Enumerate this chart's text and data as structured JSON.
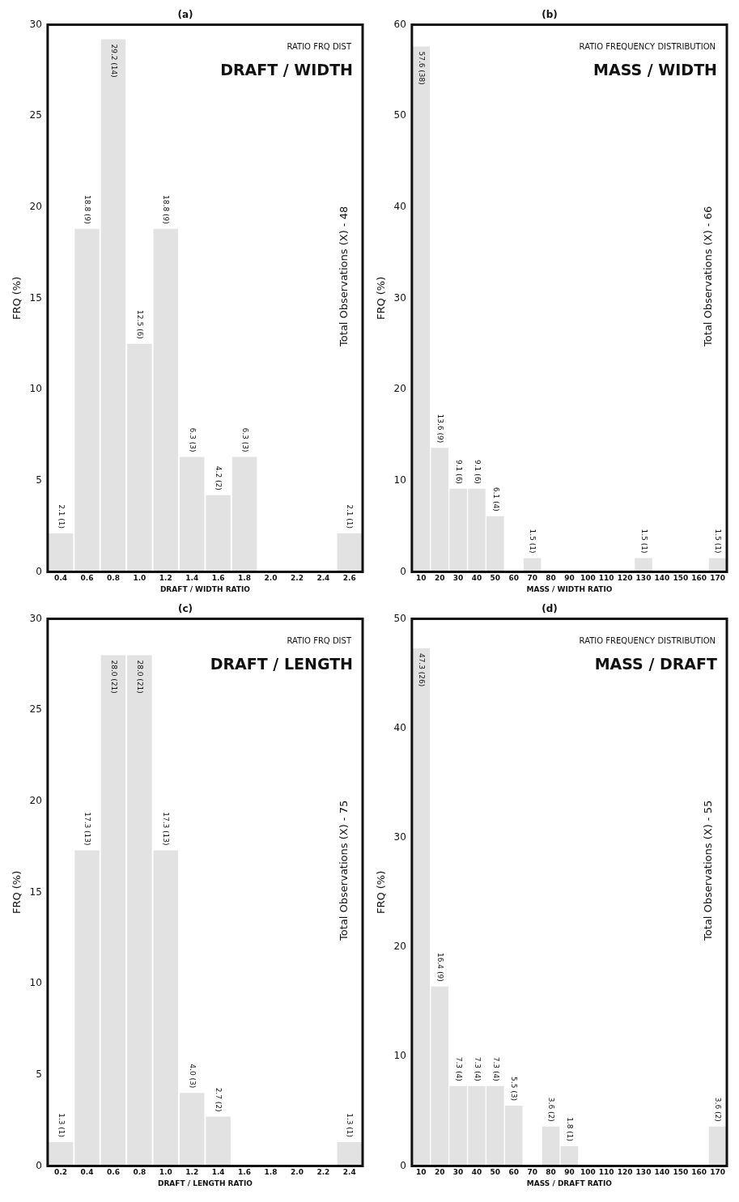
{
  "chart_data": [
    {
      "type": "bar",
      "title": "(a)",
      "xlabel": "DRAFT / WIDTH RATIO",
      "ylabel": "FRQ (%)",
      "annotations": [
        "RATIO FRQ DIST",
        "DRAFT / WIDTH",
        "Total Observations (X) - 48"
      ],
      "categories": [
        "0.4",
        "0.6",
        "0.8",
        "1.0",
        "1.2",
        "1.4",
        "1.6",
        "1.8",
        "2.0",
        "2.2",
        "2.4",
        "2.6"
      ],
      "values": [
        2.1,
        18.8,
        29.2,
        12.5,
        18.8,
        6.3,
        4.2,
        6.3,
        0,
        0,
        0,
        2.1
      ],
      "value_labels": [
        "2.1 (1)",
        "18.8 (9)",
        "29.2 (14)",
        "12.5 (6)",
        "18.8 (9)",
        "6.3 (3)",
        "4.2 (2)",
        "6.3 (3)",
        null,
        null,
        null,
        "2.1 (1)"
      ],
      "color": "#e2e2e2",
      "ylim": [
        0,
        30
      ],
      "yticks": [
        0,
        5,
        10,
        15,
        20,
        25,
        30
      ],
      "grid": false,
      "legend": false
    },
    {
      "type": "bar",
      "title": "(b)",
      "xlabel": "MASS / WIDTH RATIO",
      "ylabel": "FRQ (%)",
      "annotations": [
        "RATIO FREQUENCY DISTRIBUTION",
        "MASS / WIDTH",
        "Total Observations (X) - 66"
      ],
      "categories": [
        "10",
        "20",
        "30",
        "40",
        "50",
        "60",
        "70",
        "80",
        "90",
        "100",
        "110",
        "120",
        "130",
        "140",
        "150",
        "160",
        "170"
      ],
      "values": [
        57.6,
        13.6,
        9.1,
        9.1,
        6.1,
        0,
        1.5,
        0,
        0,
        0,
        0,
        0,
        1.5,
        0,
        0,
        0,
        1.5
      ],
      "value_labels": [
        "57.6 (38)",
        "13.6 (9)",
        "9.1 (6)",
        "9.1 (6)",
        "6.1 (4)",
        null,
        "1.5 (1)",
        null,
        null,
        null,
        null,
        null,
        "1.5 (1)",
        null,
        null,
        null,
        "1.5 (1)"
      ],
      "color": "#e2e2e2",
      "ylim": [
        0,
        60
      ],
      "yticks": [
        0,
        10,
        20,
        30,
        40,
        50,
        60
      ],
      "grid": false,
      "legend": false
    },
    {
      "type": "bar",
      "title": "(c)",
      "xlabel": "DRAFT / LENGTH RATIO",
      "ylabel": "FRQ (%)",
      "annotations": [
        "RATIO FRQ DIST",
        "DRAFT / LENGTH",
        "Total Observations (X) - 75"
      ],
      "categories": [
        "0.2",
        "0.4",
        "0.6",
        "0.8",
        "1.0",
        "1.2",
        "1.4",
        "1.6",
        "1.8",
        "2.0",
        "2.2",
        "2.4"
      ],
      "values": [
        1.3,
        17.3,
        28.0,
        28.0,
        17.3,
        4.0,
        2.7,
        0,
        0,
        0,
        0,
        1.3
      ],
      "value_labels": [
        "1.3 (1)",
        "17.3 (13)",
        "28.0 (21)",
        "28.0 (21)",
        "17.3 (13)",
        "4.0 (3)",
        "2.7 (2)",
        null,
        null,
        null,
        null,
        "1.3 (1)"
      ],
      "color": "#e2e2e2",
      "ylim": [
        0,
        30
      ],
      "yticks": [
        0,
        5,
        10,
        15,
        20,
        25,
        30
      ],
      "grid": false,
      "legend": false
    },
    {
      "type": "bar",
      "title": "(d)",
      "xlabel": "MASS / DRAFT RATIO",
      "ylabel": "FRQ (%)",
      "annotations": [
        "RATIO FREQUENCY DISTRIBUTION",
        "MASS / DRAFT",
        "Total Observations (X) - 55"
      ],
      "categories": [
        "10",
        "20",
        "30",
        "40",
        "50",
        "60",
        "70",
        "80",
        "90",
        "100",
        "110",
        "120",
        "130",
        "140",
        "150",
        "160",
        "170"
      ],
      "values": [
        47.3,
        16.4,
        7.3,
        7.3,
        7.3,
        5.5,
        0,
        3.6,
        1.8,
        0,
        0,
        0,
        0,
        0,
        0,
        0,
        3.6
      ],
      "value_labels": [
        "47.3 (26)",
        "16.4 (9)",
        "7.3 (4)",
        "7.3 (4)",
        "7.3 (4)",
        "5.5 (3)",
        null,
        "3.6 (2)",
        "1.8 (1)",
        null,
        null,
        null,
        null,
        null,
        null,
        null,
        "3.6 (2)"
      ],
      "color": "#e2e2e2",
      "ylim": [
        0,
        50
      ],
      "yticks": [
        0,
        10,
        20,
        30,
        40,
        50
      ],
      "grid": false,
      "legend": false
    }
  ]
}
